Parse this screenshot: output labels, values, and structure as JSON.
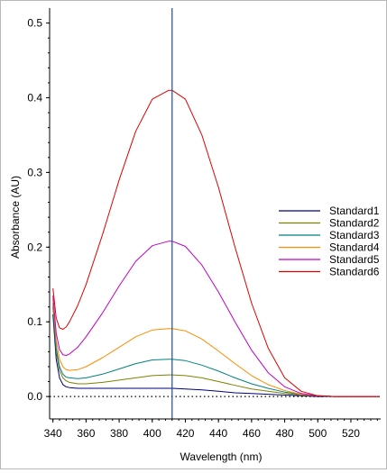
{
  "chart_data": {
    "type": "line",
    "title": "",
    "xlabel": "Wavelength (nm)",
    "ylabel": "Absorbance (AU)",
    "xlim": [
      338,
      538
    ],
    "ylim": [
      -0.03,
      0.52
    ],
    "x_ticks": [
      340,
      360,
      380,
      400,
      420,
      440,
      460,
      480,
      500,
      520
    ],
    "y_ticks": [
      0.0,
      0.1,
      0.2,
      0.3,
      0.4,
      0.5
    ],
    "y_tick_labels": [
      "0.0",
      "0.1",
      "0.2",
      "0.3",
      "0.4",
      "0.5"
    ],
    "marker_line_x": 412,
    "baseline_y": 0,
    "legend_position": "right",
    "grid": false,
    "series": [
      {
        "name": "Standard1",
        "color": "#000080",
        "x": [
          340,
          342,
          344,
          346,
          348,
          350,
          355,
          360,
          370,
          380,
          390,
          400,
          410,
          412,
          420,
          430,
          440,
          450,
          460,
          470,
          480,
          490,
          500,
          510,
          520,
          530,
          537
        ],
        "y": [
          0.11,
          0.05,
          0.025,
          0.016,
          0.013,
          0.012,
          0.011,
          0.011,
          0.011,
          0.011,
          0.011,
          0.011,
          0.011,
          0.011,
          0.01,
          0.009,
          0.007,
          0.005,
          0.004,
          0.003,
          0.002,
          0.001,
          0.0,
          0.0,
          0.0,
          0.0,
          0.0
        ]
      },
      {
        "name": "Standard2",
        "color": "#808000",
        "x": [
          340,
          342,
          344,
          346,
          348,
          350,
          355,
          360,
          370,
          380,
          390,
          400,
          410,
          412,
          420,
          430,
          440,
          450,
          460,
          470,
          480,
          490,
          500,
          510,
          520,
          530,
          537
        ],
        "y": [
          0.12,
          0.06,
          0.035,
          0.025,
          0.021,
          0.019,
          0.017,
          0.017,
          0.019,
          0.022,
          0.025,
          0.028,
          0.029,
          0.029,
          0.028,
          0.025,
          0.02,
          0.015,
          0.01,
          0.007,
          0.004,
          0.002,
          0.001,
          0.0,
          0.0,
          0.0,
          0.0
        ]
      },
      {
        "name": "Standard3",
        "color": "#008080",
        "x": [
          340,
          342,
          344,
          346,
          348,
          350,
          355,
          360,
          370,
          380,
          390,
          400,
          410,
          412,
          420,
          430,
          440,
          450,
          460,
          470,
          480,
          490,
          500,
          510,
          520,
          530,
          537
        ],
        "y": [
          0.125,
          0.065,
          0.04,
          0.03,
          0.026,
          0.025,
          0.024,
          0.025,
          0.03,
          0.037,
          0.044,
          0.049,
          0.05,
          0.05,
          0.048,
          0.042,
          0.034,
          0.025,
          0.017,
          0.011,
          0.006,
          0.003,
          0.001,
          0.0,
          0.0,
          0.0,
          0.0
        ]
      },
      {
        "name": "Standard4",
        "color": "#FF8C00",
        "x": [
          340,
          342,
          344,
          346,
          348,
          350,
          355,
          360,
          370,
          380,
          390,
          400,
          410,
          412,
          420,
          430,
          440,
          450,
          460,
          470,
          480,
          490,
          500,
          510,
          520,
          530,
          537
        ],
        "y": [
          0.13,
          0.075,
          0.05,
          0.04,
          0.036,
          0.035,
          0.036,
          0.04,
          0.052,
          0.066,
          0.08,
          0.089,
          0.091,
          0.091,
          0.088,
          0.077,
          0.061,
          0.044,
          0.028,
          0.016,
          0.008,
          0.003,
          0.001,
          0.0,
          0.0,
          0.0,
          0.0
        ]
      },
      {
        "name": "Standard5",
        "color": "#C000C0",
        "x": [
          340,
          342,
          344,
          346,
          348,
          350,
          355,
          360,
          370,
          380,
          390,
          400,
          410,
          412,
          420,
          430,
          440,
          450,
          460,
          470,
          480,
          490,
          500,
          510,
          520,
          530,
          537
        ],
        "y": [
          0.135,
          0.085,
          0.063,
          0.056,
          0.055,
          0.057,
          0.066,
          0.08,
          0.112,
          0.148,
          0.181,
          0.202,
          0.208,
          0.208,
          0.201,
          0.176,
          0.14,
          0.1,
          0.062,
          0.032,
          0.013,
          0.004,
          0.001,
          0.0,
          0.0,
          0.0,
          0.0
        ]
      },
      {
        "name": "Standard6",
        "color": "#E00000",
        "x": [
          340,
          342,
          344,
          346,
          348,
          350,
          355,
          360,
          370,
          380,
          390,
          400,
          410,
          412,
          420,
          430,
          440,
          450,
          460,
          470,
          480,
          490,
          500,
          510,
          520,
          530,
          537
        ],
        "y": [
          0.145,
          0.105,
          0.092,
          0.09,
          0.093,
          0.1,
          0.122,
          0.15,
          0.217,
          0.29,
          0.355,
          0.398,
          0.41,
          0.41,
          0.398,
          0.35,
          0.28,
          0.2,
          0.125,
          0.065,
          0.025,
          0.007,
          0.001,
          0.0,
          0.0,
          0.0,
          0.0
        ]
      }
    ]
  }
}
